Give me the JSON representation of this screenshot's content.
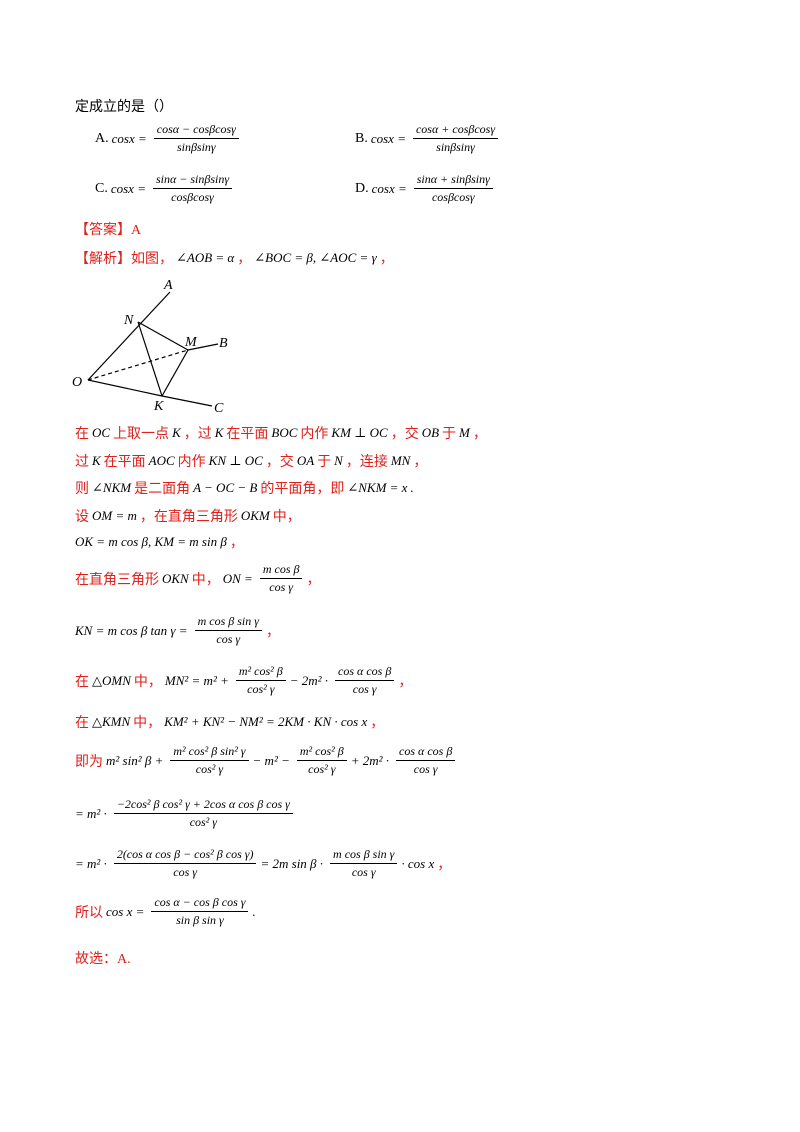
{
  "question_tail": "定成立的是（）",
  "options": [
    {
      "label": "A.",
      "expr": [
        "cosx =",
        {
          "num": "cosα − cosβcosγ",
          "den": "sinβsinγ"
        }
      ]
    },
    {
      "label": "B.",
      "expr": [
        "cosx =",
        {
          "num": "cosα + cosβcosγ",
          "den": "sinβsinγ"
        }
      ]
    },
    {
      "label": "C.",
      "expr": [
        "cosx =",
        {
          "num": "sinα − sinβsinγ",
          "den": "cosβcosγ"
        }
      ]
    },
    {
      "label": "D.",
      "expr": [
        "cosx =",
        {
          "num": "sinα + sinβsinγ",
          "den": "cosβcosγ"
        }
      ]
    }
  ],
  "answer": "【答案】A",
  "analysis": [
    "【解析】如图，",
    "∠AOB = α",
    "，",
    "∠BOC = β, ∠AOC = γ",
    "，"
  ],
  "figure": {
    "labels": [
      "A",
      "N",
      "M",
      "B",
      "O",
      "K",
      "C"
    ]
  },
  "lines": [
    [
      "在",
      "OC",
      "上取一点",
      "K",
      "，过",
      "K",
      "在平面",
      "BOC",
      "内作",
      "KM ⊥ OC",
      "，交",
      "OB",
      "于",
      "M",
      "，"
    ],
    [
      "过",
      "K",
      "在平面",
      "AOC",
      "内作",
      "KN ⊥ OC",
      "，交",
      "OA",
      "于",
      "N",
      "，连接",
      "MN",
      "，"
    ],
    [
      "则",
      "∠NKM",
      "是二面角",
      "A − OC − B",
      "的平面角，即",
      "∠NKM = x",
      "."
    ],
    [
      "设",
      "OM = m",
      "，在直角三角形",
      "OKM",
      "中，"
    ],
    [
      "OK = m cos β, KM = m sin β",
      "，"
    ],
    [
      "在直角三角形",
      "OKN",
      "中，",
      "ON =",
      {
        "num": "m cos β",
        "den": "cos γ"
      },
      "，"
    ],
    [
      "KN = m cos β tan γ =",
      {
        "num": "m cos β sin γ",
        "den": "cos γ"
      },
      "，"
    ],
    [
      "在",
      "△OMN",
      "中，",
      "MN² = m² +",
      {
        "num": "m² cos² β",
        "den": "cos² γ"
      },
      "− 2m² ·",
      {
        "num": "cos α cos β",
        "den": "cos γ"
      },
      "，"
    ],
    [
      "在",
      "△KMN",
      "中，",
      "KM² + KN² − NM² = 2KM · KN · cos x",
      "，"
    ],
    [
      "即为",
      "m² sin² β +",
      {
        "num": "m² cos² β sin² γ",
        "den": "cos² γ"
      },
      "− m² −",
      {
        "num": "m² cos² β",
        "den": "cos² γ"
      },
      "+ 2m² ·",
      {
        "num": "cos α cos β",
        "den": "cos γ"
      }
    ],
    [
      "= m² ·",
      {
        "num": "−2cos² β cos² γ + 2cos α cos β cos γ",
        "den": "cos² γ"
      }
    ],
    [
      "= m² ·",
      {
        "num": "2(cos α cos β − cos² β cos γ)",
        "den": "cos γ"
      },
      "= 2m sin β ·",
      {
        "num": "m cos β sin γ",
        "den": "cos γ"
      },
      "· cos x",
      "，"
    ],
    [
      "所以",
      "cos x =",
      {
        "num": "cos α − cos β cos γ",
        "den": "sin β sin γ"
      },
      "."
    ],
    [
      "故选：A."
    ]
  ]
}
